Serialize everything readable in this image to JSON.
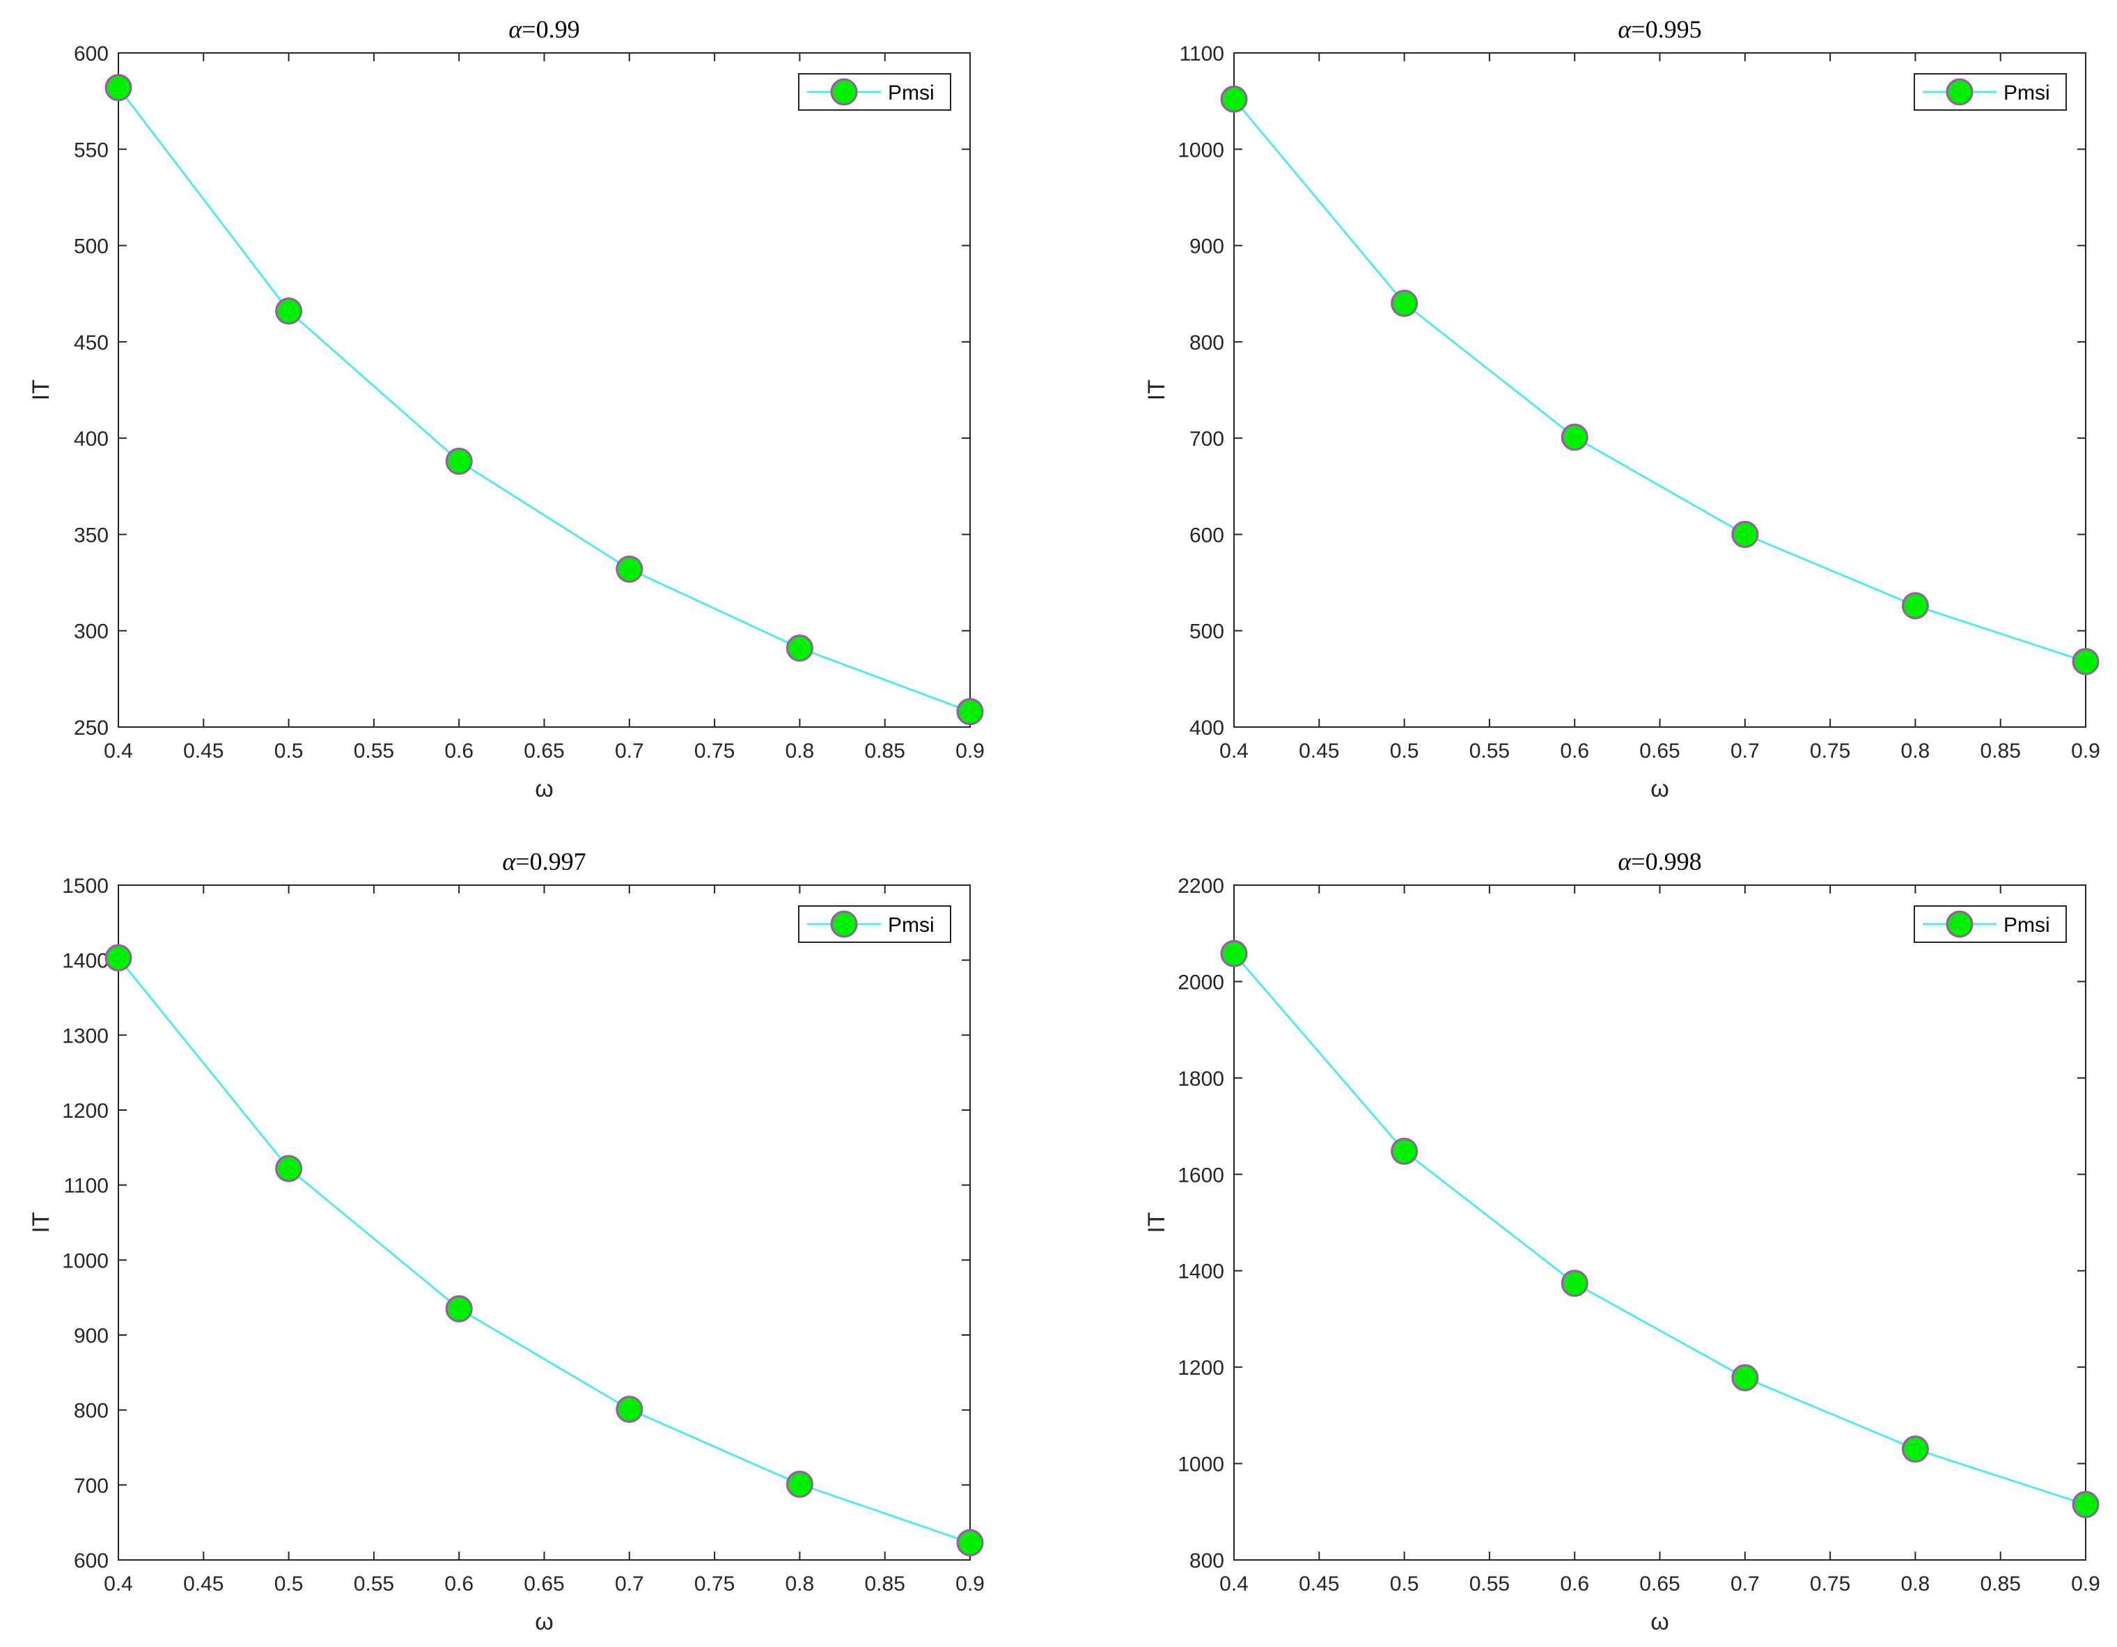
{
  "chart_data": [
    {
      "type": "line",
      "title": "α=0.99",
      "title_symbol": "α",
      "title_value": "=0.99",
      "xlabel": "ω",
      "ylabel": "IT",
      "xlim": [
        0.4,
        0.9
      ],
      "ylim": [
        250,
        600
      ],
      "xticks": [
        "0.4",
        "0.45",
        "0.5",
        "0.55",
        "0.6",
        "0.65",
        "0.7",
        "0.75",
        "0.8",
        "0.85",
        "0.9"
      ],
      "yticks": [
        "250",
        "300",
        "350",
        "400",
        "450",
        "500",
        "550",
        "600"
      ],
      "grid": false,
      "legend_position": "top-right",
      "series": [
        {
          "name": "Pmsi",
          "x": [
            0.4,
            0.5,
            0.6,
            0.7,
            0.8,
            0.9
          ],
          "y": [
            582,
            466,
            388,
            332,
            291,
            258
          ]
        }
      ]
    },
    {
      "type": "line",
      "title": "α=0.995",
      "title_symbol": "α",
      "title_value": "=0.995",
      "xlabel": "ω",
      "ylabel": "IT",
      "xlim": [
        0.4,
        0.9
      ],
      "ylim": [
        400,
        1100
      ],
      "xticks": [
        "0.4",
        "0.45",
        "0.5",
        "0.55",
        "0.6",
        "0.65",
        "0.7",
        "0.75",
        "0.8",
        "0.85",
        "0.9"
      ],
      "yticks": [
        "400",
        "500",
        "600",
        "700",
        "800",
        "900",
        "1000",
        "1100"
      ],
      "grid": false,
      "legend_position": "top-right",
      "series": [
        {
          "name": "Pmsi",
          "x": [
            0.4,
            0.5,
            0.6,
            0.7,
            0.8,
            0.9
          ],
          "y": [
            1052,
            840,
            701,
            600,
            526,
            468
          ]
        }
      ]
    },
    {
      "type": "line",
      "title": "α=0.997",
      "title_symbol": "α",
      "title_value": "=0.997",
      "xlabel": "ω",
      "ylabel": "IT",
      "xlim": [
        0.4,
        0.9
      ],
      "ylim": [
        600,
        1500
      ],
      "xticks": [
        "0.4",
        "0.45",
        "0.5",
        "0.55",
        "0.6",
        "0.65",
        "0.7",
        "0.75",
        "0.8",
        "0.85",
        "0.9"
      ],
      "yticks": [
        "600",
        "700",
        "800",
        "900",
        "1000",
        "1100",
        "1200",
        "1300",
        "1400",
        "1500"
      ],
      "grid": false,
      "legend_position": "top-right",
      "series": [
        {
          "name": "Pmsi",
          "x": [
            0.4,
            0.5,
            0.6,
            0.7,
            0.8,
            0.9
          ],
          "y": [
            1403,
            1122,
            935,
            801,
            701,
            623
          ]
        }
      ]
    },
    {
      "type": "line",
      "title": "α=0.998",
      "title_symbol": "α",
      "title_value": "=0.998",
      "xlabel": "ω",
      "ylabel": "IT",
      "xlim": [
        0.4,
        0.9
      ],
      "ylim": [
        800,
        2200
      ],
      "xticks": [
        "0.4",
        "0.45",
        "0.5",
        "0.55",
        "0.6",
        "0.65",
        "0.7",
        "0.75",
        "0.8",
        "0.85",
        "0.9"
      ],
      "yticks": [
        "800",
        "1000",
        "1200",
        "1400",
        "1600",
        "1800",
        "2000",
        "2200"
      ],
      "grid": false,
      "legend_position": "top-right",
      "series": [
        {
          "name": "Pmsi",
          "x": [
            0.4,
            0.5,
            0.6,
            0.7,
            0.8,
            0.9
          ],
          "y": [
            2058,
            1648,
            1374,
            1178,
            1030,
            915
          ]
        }
      ]
    }
  ],
  "colors": {
    "line": "#55e8ee",
    "marker_fill": "#00ee00",
    "marker_edge": "#9a5aa8",
    "axis": "#262626",
    "background": "#ffffff"
  }
}
